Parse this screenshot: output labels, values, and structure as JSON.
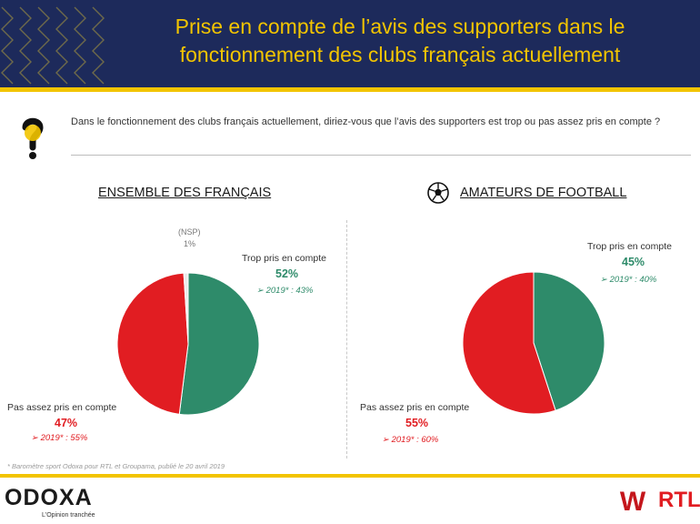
{
  "header": {
    "title_line1": "Prise en compte de l’avis des supporters dans le",
    "title_line2": "fonctionnement des clubs français actuellement"
  },
  "question": "Dans le fonctionnement des clubs français actuellement, diriez-vous que l’avis des supporters est trop ou pas assez pris en compte ?",
  "colors": {
    "green": "#2e8b6a",
    "red": "#e11d22",
    "nsp": "#ececec",
    "navy": "#1d2a5b",
    "gold": "#f2c400"
  },
  "chart_data": [
    {
      "type": "pie",
      "title": "ENSEMBLE DES FRANÇAIS",
      "slices": [
        {
          "label": "Trop pris en compte",
          "value": 52,
          "display": "52%",
          "previous": "2019* : 43%"
        },
        {
          "label": "Pas assez pris en compte",
          "value": 47,
          "display": "47%",
          "previous": "2019* : 55%"
        },
        {
          "label": "(NSP)",
          "value": 1,
          "display": "1%"
        }
      ]
    },
    {
      "type": "pie",
      "title": "AMATEURS DE FOOTBALL",
      "title_icon": "soccer-ball-icon",
      "slices": [
        {
          "label": "Trop pris en compte",
          "value": 45,
          "display": "45%",
          "previous": "2019* : 40%"
        },
        {
          "label": "Pas assez pris en compte",
          "value": 55,
          "display": "55%",
          "previous": "2019* : 60%"
        }
      ]
    }
  ],
  "footnote": "* Baromètre sport Odoxa pour RTL et Groupama, publié le 20 avril 2019",
  "footer": {
    "odoxa_logo": "ODOXA",
    "odoxa_tagline": "L'Opinion tranchée",
    "winamax_logo": "W",
    "rtl_logo": "RTL"
  }
}
